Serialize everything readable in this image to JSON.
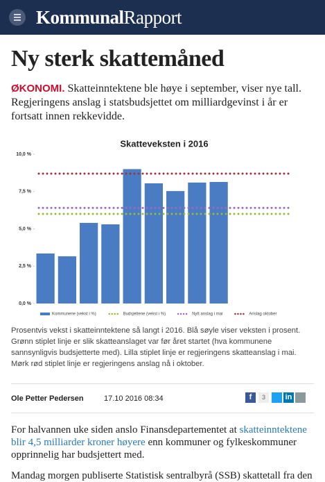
{
  "header": {
    "logo_bold": "Kommunal",
    "logo_regular": "Rapport"
  },
  "article": {
    "title": "Ny sterk skattemåned",
    "kicker": "ØKONOMI.",
    "lead": "Skatteinntektene ble høye i september, viser nye tall. Regjeringens anslag i statsbudsjettet om milliardgevinst i år er fortsatt innen rekkevidde.",
    "caption": "Prosentvis vekst i skatteinntektene så langt i 2016. Blå søyle viser veksten i prosent. Grønn stiplet linje er slik skatteanslaget var før året startet (hva kommunene sannsynligvis budsjetterte med). Lilla stiplet linje er regjeringens skatteanslag i mai. Mørk rød stiplet linje er regjeringens anslag nå i oktober.",
    "author": "Ole Petter Pedersen",
    "date": "17.10 2016 08:34",
    "share": {
      "facebook": "f",
      "count": 3,
      "linkedin": "in"
    },
    "body": [
      {
        "before": "For halvannen uke siden anslo Finansdepartementet at ",
        "link": "skatteinntektene blir 4,5 milliarder kroner høyere",
        "after": " enn kommuner og fylkeskommuner opprinnelig har budsjettert med."
      },
      {
        "before": "Mandag morgen publiserte Statistisk sentralbyrå (SSB) skattetall fra den"
      }
    ]
  },
  "chart_data": {
    "type": "bar",
    "title": "Skatteveksten i 2016",
    "categories": [
      null,
      null,
      null,
      null,
      null,
      null,
      null,
      null,
      null,
      null,
      null,
      null
    ],
    "series": [
      {
        "name": "Kommunene (vekst i %)",
        "color": "#4a7cc4",
        "values": [
          3.35,
          3.16,
          5.4,
          5.3,
          9.0,
          8.05,
          7.53,
          8.1,
          8.14,
          null,
          null,
          null
        ]
      }
    ],
    "reference_lines": [
      {
        "name": "Budsjettene (vekst i %)",
        "color": "#9bb83a",
        "value": 6.0
      },
      {
        "name": "Nytt anslag i mai",
        "color": "#9a6bbf",
        "value": 6.4
      },
      {
        "name": "Anslag oktober",
        "color": "#a1303a",
        "value": 8.7
      }
    ],
    "ylim": [
      0,
      10
    ],
    "yticks": [
      {
        "value": 0,
        "label": "0,0 %"
      },
      {
        "value": 2.5,
        "label": "2,5 %"
      },
      {
        "value": 5,
        "label": "5,0 %"
      },
      {
        "value": 7.5,
        "label": "7,5 %"
      },
      {
        "value": 10,
        "label": "10,0 %"
      }
    ],
    "grid": false,
    "legend": "bottom"
  }
}
